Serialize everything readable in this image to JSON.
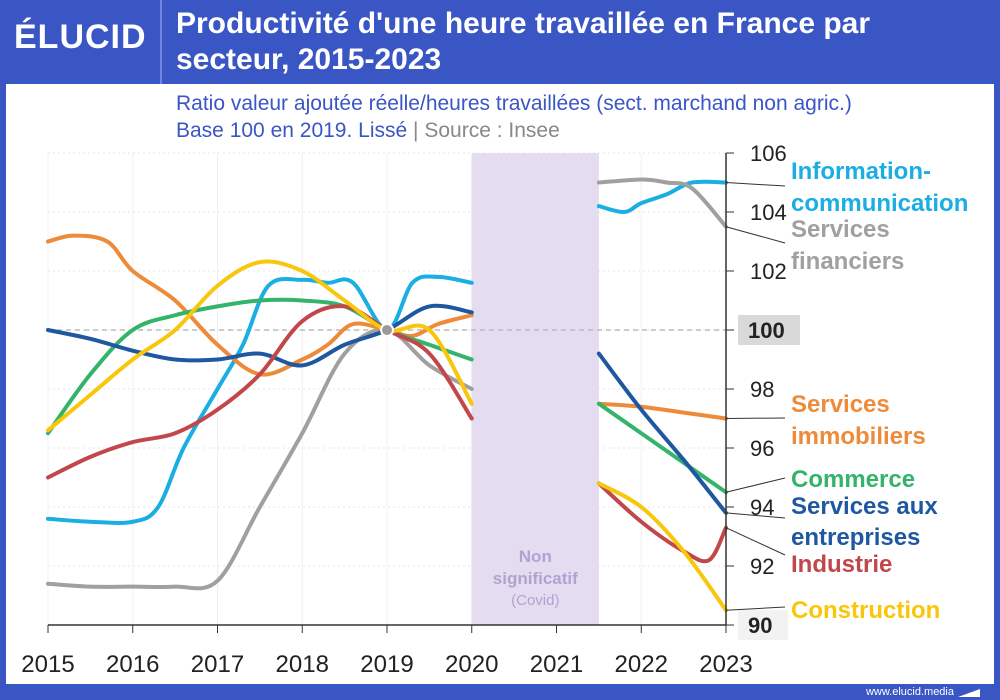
{
  "header": {
    "logo": "ÉLUCID",
    "title_line1": "Productivité d'une heure travaillée en France par",
    "title_line2": "secteur, 2015-2023",
    "subtitle_line1": "Ratio valeur ajoutée réelle/heures travaillées (sect. marchand non agric.)",
    "subtitle_line2a": "Base 100 en 2019. Lissé",
    "subtitle_sep": "|",
    "subtitle_line2b": "Source : Insee"
  },
  "footer": {
    "site": "www.elucid.media"
  },
  "colors": {
    "brand": "#3a56c5",
    "covid_band": "#e4dcf0",
    "covid_text": "#b3a2d0",
    "reference_line": "#bbbbbb"
  },
  "chart_data": {
    "type": "line",
    "xlim": [
      2015,
      2023
    ],
    "ylim": [
      90,
      106
    ],
    "x_ticks": [
      "2015",
      "2016",
      "2017",
      "2018",
      "2019",
      "2020",
      "2021",
      "2022",
      "2023"
    ],
    "y_ticks": [
      "90",
      "92",
      "94",
      "96",
      "98",
      "100",
      "102",
      "104",
      "106"
    ],
    "reference_line": 100,
    "grid": "horizontal dotted",
    "shaded_region": {
      "from": 2020,
      "to": 2021.5,
      "label_line1": "Non",
      "label_line2": "significatif",
      "label_line3": "(Covid)"
    },
    "series": [
      {
        "name": "Information-communication",
        "label_line1": "Information-",
        "label_line2": "communication",
        "color": "#1aaee3",
        "segments": [
          [
            [
              2015,
              93.6
            ],
            [
              2015.5,
              93.5
            ],
            [
              2016,
              93.5
            ],
            [
              2016.3,
              94.0
            ],
            [
              2016.6,
              96.0
            ],
            [
              2017,
              98.0
            ],
            [
              2017.3,
              99.5
            ],
            [
              2017.6,
              101.5
            ],
            [
              2018,
              101.7
            ],
            [
              2018.3,
              101.6
            ],
            [
              2018.6,
              101.6
            ],
            [
              2019,
              100.0
            ],
            [
              2019.3,
              101.6
            ],
            [
              2019.6,
              101.8
            ],
            [
              2020,
              101.6
            ]
          ],
          [
            [
              2021.5,
              104.2
            ],
            [
              2021.8,
              104.0
            ],
            [
              2022,
              104.3
            ],
            [
              2022.3,
              104.6
            ],
            [
              2022.6,
              105.0
            ],
            [
              2023,
              105.0
            ]
          ]
        ]
      },
      {
        "name": "Services financiers",
        "label_line1": "Services",
        "label_line2": "financiers",
        "color": "#a0a0a0",
        "segments": [
          [
            [
              2015,
              91.4
            ],
            [
              2015.5,
              91.3
            ],
            [
              2016,
              91.3
            ],
            [
              2016.5,
              91.3
            ],
            [
              2017,
              91.5
            ],
            [
              2017.5,
              94.0
            ],
            [
              2018,
              96.5
            ],
            [
              2018.5,
              99.2
            ],
            [
              2019,
              100.0
            ],
            [
              2019.5,
              98.8
            ],
            [
              2020,
              98.0
            ]
          ],
          [
            [
              2021.5,
              105.0
            ],
            [
              2022,
              105.1
            ],
            [
              2022.3,
              105.0
            ],
            [
              2022.6,
              104.8
            ],
            [
              2023,
              103.5
            ]
          ]
        ]
      },
      {
        "name": "Services immobiliers",
        "label_line1": "Services",
        "label_line2": "immobiliers",
        "color": "#ed8b3a",
        "segments": [
          [
            [
              2015,
              103.0
            ],
            [
              2015.3,
              103.2
            ],
            [
              2015.7,
              103.0
            ],
            [
              2016,
              102.0
            ],
            [
              2016.5,
              101.0
            ],
            [
              2017,
              99.5
            ],
            [
              2017.5,
              98.5
            ],
            [
              2018,
              99.0
            ],
            [
              2018.3,
              99.5
            ],
            [
              2018.6,
              100.2
            ],
            [
              2019,
              100.0
            ],
            [
              2019.3,
              99.8
            ],
            [
              2019.6,
              100.2
            ],
            [
              2020,
              100.5
            ]
          ],
          [
            [
              2021.5,
              97.5
            ],
            [
              2022,
              97.4
            ],
            [
              2022.5,
              97.2
            ],
            [
              2023,
              97.0
            ]
          ]
        ]
      },
      {
        "name": "Commerce",
        "label_line1": "Commerce",
        "label_line2": "",
        "color": "#34b36a",
        "segments": [
          [
            [
              2015,
              96.5
            ],
            [
              2015.5,
              98.5
            ],
            [
              2016,
              100.0
            ],
            [
              2016.5,
              100.5
            ],
            [
              2017,
              100.8
            ],
            [
              2017.5,
              101.0
            ],
            [
              2018,
              101.0
            ],
            [
              2018.5,
              100.8
            ],
            [
              2019,
              100.0
            ],
            [
              2019.5,
              99.5
            ],
            [
              2020,
              99.0
            ]
          ],
          [
            [
              2021.5,
              97.5
            ],
            [
              2022,
              96.5
            ],
            [
              2022.5,
              95.5
            ],
            [
              2023,
              94.5
            ]
          ]
        ]
      },
      {
        "name": "Services aux entreprises",
        "label_line1": "Services aux",
        "label_line2": "entreprises",
        "color": "#1f58a0",
        "segments": [
          [
            [
              2015,
              100.0
            ],
            [
              2015.5,
              99.7
            ],
            [
              2016,
              99.3
            ],
            [
              2016.5,
              99.0
            ],
            [
              2017,
              99.0
            ],
            [
              2017.5,
              99.2
            ],
            [
              2018,
              98.8
            ],
            [
              2018.5,
              99.5
            ],
            [
              2019,
              100.0
            ],
            [
              2019.5,
              100.8
            ],
            [
              2020,
              100.6
            ]
          ],
          [
            [
              2021.5,
              99.2
            ],
            [
              2022,
              97.3
            ],
            [
              2022.5,
              95.6
            ],
            [
              2023,
              93.8
            ]
          ]
        ]
      },
      {
        "name": "Industrie",
        "label_line1": "Industrie",
        "label_line2": "",
        "color": "#c1474b",
        "segments": [
          [
            [
              2015,
              95.0
            ],
            [
              2015.5,
              95.7
            ],
            [
              2016,
              96.2
            ],
            [
              2016.5,
              96.5
            ],
            [
              2017,
              97.3
            ],
            [
              2017.5,
              98.5
            ],
            [
              2018,
              100.3
            ],
            [
              2018.5,
              100.8
            ],
            [
              2019,
              100.0
            ],
            [
              2019.5,
              99.2
            ],
            [
              2020,
              97.0
            ]
          ],
          [
            [
              2021.5,
              94.8
            ],
            [
              2022,
              93.5
            ],
            [
              2022.5,
              92.5
            ],
            [
              2022.8,
              92.2
            ],
            [
              2023,
              93.3
            ]
          ]
        ]
      },
      {
        "name": "Construction",
        "label_line1": "Construction",
        "label_line2": "",
        "color": "#f8c60a",
        "segments": [
          [
            [
              2015,
              96.6
            ],
            [
              2015.5,
              97.8
            ],
            [
              2016,
              99.0
            ],
            [
              2016.5,
              100.0
            ],
            [
              2017,
              101.5
            ],
            [
              2017.5,
              102.3
            ],
            [
              2018,
              102.0
            ],
            [
              2018.5,
              101.0
            ],
            [
              2019,
              100.0
            ],
            [
              2019.5,
              100.0
            ],
            [
              2020,
              97.5
            ]
          ],
          [
            [
              2021.5,
              94.8
            ],
            [
              2022,
              94.0
            ],
            [
              2022.5,
              92.5
            ],
            [
              2023,
              90.5
            ]
          ]
        ]
      }
    ]
  }
}
